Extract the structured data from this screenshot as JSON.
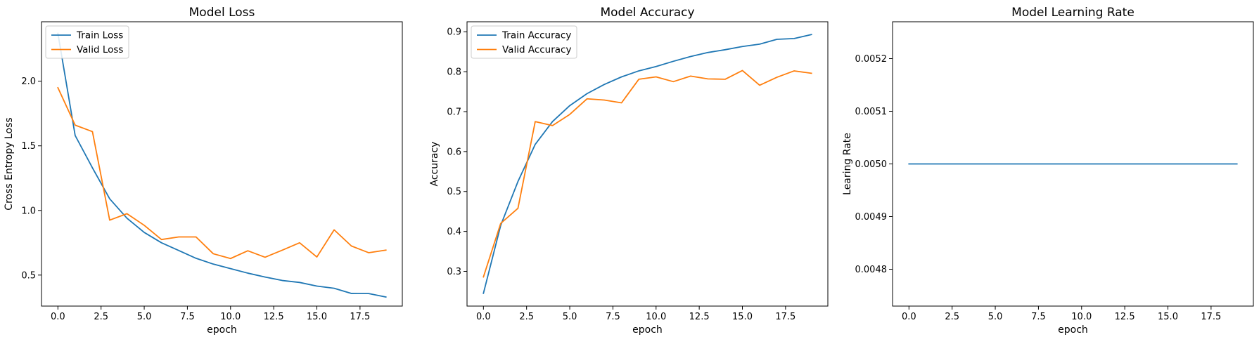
{
  "chart_data": [
    {
      "type": "line",
      "title": "Model Loss",
      "xlabel": "epoch",
      "ylabel": "Cross Entropy Loss",
      "xlim": [
        -0.95,
        19.95
      ],
      "ylim": [
        0.26,
        2.46
      ],
      "xticks": [
        0.0,
        2.5,
        5.0,
        7.5,
        10.0,
        12.5,
        15.0,
        17.5
      ],
      "xtick_labels": [
        "0.0",
        "2.5",
        "5.0",
        "7.5",
        "10.0",
        "12.5",
        "15.0",
        "17.5"
      ],
      "yticks": [
        0.5,
        1.0,
        1.5,
        2.0
      ],
      "ytick_labels": [
        "0.5",
        "1.0",
        "1.5",
        "2.0"
      ],
      "legend": "upper-left",
      "grid": false,
      "x": [
        0,
        1,
        2,
        3,
        4,
        5,
        6,
        7,
        8,
        9,
        10,
        11,
        12,
        13,
        14,
        15,
        16,
        17,
        18,
        19
      ],
      "series": [
        {
          "name": "Train Loss",
          "color": "#1f77b4",
          "values": [
            2.37,
            1.58,
            1.33,
            1.09,
            0.94,
            0.83,
            0.75,
            0.69,
            0.63,
            0.585,
            0.55,
            0.515,
            0.485,
            0.458,
            0.443,
            0.415,
            0.398,
            0.358,
            0.357,
            0.33
          ]
        },
        {
          "name": "Valid Loss",
          "color": "#ff7f0e",
          "values": [
            1.95,
            1.66,
            1.61,
            0.925,
            0.975,
            0.885,
            0.775,
            0.795,
            0.795,
            0.665,
            0.628,
            0.688,
            0.638,
            0.693,
            0.75,
            0.64,
            0.85,
            0.725,
            0.673,
            0.693
          ]
        }
      ]
    },
    {
      "type": "line",
      "title": "Model Accuracy",
      "xlabel": "epoch",
      "ylabel": "Accuracy",
      "xlim": [
        -0.95,
        19.95
      ],
      "ylim": [
        0.213,
        0.925
      ],
      "xticks": [
        0.0,
        2.5,
        5.0,
        7.5,
        10.0,
        12.5,
        15.0,
        17.5
      ],
      "xtick_labels": [
        "0.0",
        "2.5",
        "5.0",
        "7.5",
        "10.0",
        "12.5",
        "15.0",
        "17.5"
      ],
      "yticks": [
        0.3,
        0.4,
        0.5,
        0.6,
        0.7,
        0.8,
        0.9
      ],
      "ytick_labels": [
        "0.3",
        "0.4",
        "0.5",
        "0.6",
        "0.7",
        "0.8",
        "0.9"
      ],
      "legend": "upper-left",
      "grid": false,
      "x": [
        0,
        1,
        2,
        3,
        4,
        5,
        6,
        7,
        8,
        9,
        10,
        11,
        12,
        13,
        14,
        15,
        16,
        17,
        18,
        19
      ],
      "series": [
        {
          "name": "Train Accuracy",
          "color": "#1f77b4",
          "values": [
            0.245,
            0.415,
            0.525,
            0.618,
            0.675,
            0.715,
            0.745,
            0.768,
            0.787,
            0.802,
            0.813,
            0.826,
            0.838,
            0.848,
            0.855,
            0.863,
            0.869,
            0.881,
            0.883,
            0.893
          ]
        },
        {
          "name": "Valid Accuracy",
          "color": "#ff7f0e",
          "values": [
            0.286,
            0.42,
            0.458,
            0.675,
            0.665,
            0.693,
            0.732,
            0.729,
            0.722,
            0.781,
            0.787,
            0.775,
            0.789,
            0.782,
            0.781,
            0.803,
            0.766,
            0.786,
            0.802,
            0.796
          ]
        }
      ]
    },
    {
      "type": "line",
      "title": "Model Learning Rate",
      "xlabel": "epoch",
      "ylabel": "Learing Rate",
      "xlim": [
        -0.95,
        19.95
      ],
      "ylim": [
        0.00473,
        0.00527
      ],
      "xticks": [
        0.0,
        2.5,
        5.0,
        7.5,
        10.0,
        12.5,
        15.0,
        17.5
      ],
      "xtick_labels": [
        "0.0",
        "2.5",
        "5.0",
        "7.5",
        "10.0",
        "12.5",
        "15.0",
        "17.5"
      ],
      "yticks": [
        0.0048,
        0.0049,
        0.005,
        0.0051,
        0.0052
      ],
      "ytick_labels": [
        "0.0048",
        "0.0049",
        "0.0050",
        "0.0051",
        "0.0052"
      ],
      "legend": "none",
      "grid": false,
      "x": [
        0,
        1,
        2,
        3,
        4,
        5,
        6,
        7,
        8,
        9,
        10,
        11,
        12,
        13,
        14,
        15,
        16,
        17,
        18,
        19
      ],
      "series": [
        {
          "color": "#1f77b4",
          "values": [
            0.005,
            0.005,
            0.005,
            0.005,
            0.005,
            0.005,
            0.005,
            0.005,
            0.005,
            0.005,
            0.005,
            0.005,
            0.005,
            0.005,
            0.005,
            0.005,
            0.005,
            0.005,
            0.005,
            0.005
          ]
        }
      ]
    }
  ]
}
